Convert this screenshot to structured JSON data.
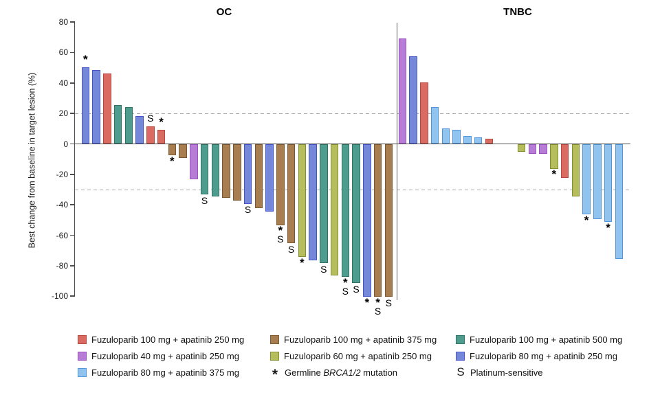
{
  "chart_data": {
    "type": "bar",
    "subtype": "waterfall",
    "title": "",
    "xlabel": "",
    "ylabel": "Best change from baseline in target lesion (%)",
    "ylim": [
      -100,
      80
    ],
    "yticks": [
      80,
      60,
      40,
      20,
      0,
      -20,
      -40,
      -60,
      -80,
      -100
    ],
    "reference_lines": [
      20,
      -30
    ],
    "grid": "dashed-horizontal-reference-only",
    "legend_position": "bottom",
    "mark_meanings": {
      "*": "Germline BRCA1/2 mutation",
      "S": "Platinum-sensitive"
    },
    "groups": [
      {
        "title": "OC",
        "bars": [
          {
            "value": 50,
            "color": "royal",
            "marks": [
              "*"
            ]
          },
          {
            "value": 48,
            "color": "royal",
            "marks": []
          },
          {
            "value": 46,
            "color": "red",
            "marks": []
          },
          {
            "value": 25,
            "color": "teal",
            "marks": []
          },
          {
            "value": 24,
            "color": "teal",
            "marks": []
          },
          {
            "value": 18,
            "color": "royal",
            "marks": []
          },
          {
            "value": 11,
            "color": "red",
            "marks": [
              "S"
            ]
          },
          {
            "value": 9,
            "color": "red",
            "marks": [
              "*"
            ]
          },
          {
            "value": -7,
            "color": "brown",
            "marks": [
              "*"
            ]
          },
          {
            "value": -9,
            "color": "brown",
            "marks": []
          },
          {
            "value": -23,
            "color": "orchid",
            "marks": []
          },
          {
            "value": -33,
            "color": "teal",
            "marks": [
              "S"
            ]
          },
          {
            "value": -34,
            "color": "teal",
            "marks": []
          },
          {
            "value": -35,
            "color": "brown",
            "marks": []
          },
          {
            "value": -37,
            "color": "brown",
            "marks": []
          },
          {
            "value": -39,
            "color": "royal",
            "marks": [
              "S"
            ]
          },
          {
            "value": -42,
            "color": "brown",
            "marks": []
          },
          {
            "value": -44,
            "color": "royal",
            "marks": []
          },
          {
            "value": -53,
            "color": "brown",
            "marks": [
              "*",
              "S"
            ]
          },
          {
            "value": -65,
            "color": "brown",
            "marks": [
              "S"
            ]
          },
          {
            "value": -74,
            "color": "olive",
            "marks": [
              "*"
            ]
          },
          {
            "value": -76,
            "color": "royal",
            "marks": []
          },
          {
            "value": -78,
            "color": "teal",
            "marks": [
              "S"
            ]
          },
          {
            "value": -86,
            "color": "olive",
            "marks": []
          },
          {
            "value": -87,
            "color": "teal",
            "marks": [
              "*",
              "S"
            ]
          },
          {
            "value": -91,
            "color": "teal",
            "marks": [
              "S"
            ]
          },
          {
            "value": -100,
            "color": "royal",
            "marks": [
              "*"
            ]
          },
          {
            "value": -100,
            "color": "brown",
            "marks": [
              "*",
              "S"
            ]
          },
          {
            "value": -100,
            "color": "brown",
            "marks": [
              "S"
            ]
          }
        ]
      },
      {
        "title": "TNBC",
        "gap_after_index": 8,
        "gap_slots": 2,
        "bars": [
          {
            "value": 69,
            "color": "orchid",
            "marks": []
          },
          {
            "value": 57,
            "color": "royal",
            "marks": []
          },
          {
            "value": 40,
            "color": "red",
            "marks": []
          },
          {
            "value": 24,
            "color": "sky",
            "marks": []
          },
          {
            "value": 10,
            "color": "sky",
            "marks": []
          },
          {
            "value": 9,
            "color": "sky",
            "marks": []
          },
          {
            "value": 5,
            "color": "sky",
            "marks": []
          },
          {
            "value": 4,
            "color": "sky",
            "marks": []
          },
          {
            "value": 3,
            "color": "red",
            "marks": []
          },
          {
            "value": -5,
            "color": "olive",
            "marks": []
          },
          {
            "value": -6,
            "color": "orchid",
            "marks": []
          },
          {
            "value": -6,
            "color": "orchid",
            "marks": []
          },
          {
            "value": -16,
            "color": "olive",
            "marks": [
              "*"
            ]
          },
          {
            "value": -22,
            "color": "red",
            "marks": []
          },
          {
            "value": -34,
            "color": "olive",
            "marks": []
          },
          {
            "value": -46,
            "color": "sky",
            "marks": [
              "*"
            ]
          },
          {
            "value": -49,
            "color": "sky",
            "marks": []
          },
          {
            "value": -51,
            "color": "sky",
            "marks": [
              "*"
            ]
          },
          {
            "value": -75,
            "color": "sky",
            "marks": []
          }
        ]
      }
    ],
    "colors": {
      "red": {
        "fill": "#D96B63",
        "stroke": "#B8473F"
      },
      "orchid": {
        "fill": "#B77CD6",
        "stroke": "#9A53BF"
      },
      "sky": {
        "fill": "#90C4EF",
        "stroke": "#5395DB"
      },
      "brown": {
        "fill": "#A87D4F",
        "stroke": "#7A5930"
      },
      "olive": {
        "fill": "#B6BD5C",
        "stroke": "#838E2F"
      },
      "teal": {
        "fill": "#4E9C8D",
        "stroke": "#2F7366"
      },
      "royal": {
        "fill": "#7587D8",
        "stroke": "#4355C8"
      }
    }
  },
  "legend": {
    "columns": [
      [
        {
          "marker_type": "swatch",
          "marker": "red",
          "prefix": "Fuzuloparib 100 mg + apatinib 250 mg",
          "italic": "",
          "suffix": ""
        },
        {
          "marker_type": "swatch",
          "marker": "orchid",
          "prefix": "Fuzuloparib 40 mg + apatinib 250 mg",
          "italic": "",
          "suffix": ""
        },
        {
          "marker_type": "swatch",
          "marker": "sky",
          "prefix": "Fuzuloparib 80 mg + apatinib 375 mg",
          "italic": "",
          "suffix": ""
        }
      ],
      [
        {
          "marker_type": "swatch",
          "marker": "brown",
          "prefix": "Fuzuloparib 100 mg + apatinib 375 mg",
          "italic": "",
          "suffix": ""
        },
        {
          "marker_type": "swatch",
          "marker": "olive",
          "prefix": "Fuzuloparib 60 mg + apatinib 250 mg",
          "italic": "",
          "suffix": ""
        },
        {
          "marker_type": "symbol",
          "marker": "*",
          "prefix": "Germline ",
          "italic": "BRCA1/2",
          "suffix": " mutation"
        }
      ],
      [
        {
          "marker_type": "swatch",
          "marker": "teal",
          "prefix": "Fuzuloparib 100 mg + apatinib 500 mg",
          "italic": "",
          "suffix": ""
        },
        {
          "marker_type": "swatch",
          "marker": "royal",
          "prefix": "Fuzuloparib 80 mg + apatinib 250 mg",
          "italic": "",
          "suffix": ""
        },
        {
          "marker_type": "symbol",
          "marker": "S",
          "prefix": "Platinum-sensitive",
          "italic": "",
          "suffix": ""
        }
      ]
    ]
  }
}
